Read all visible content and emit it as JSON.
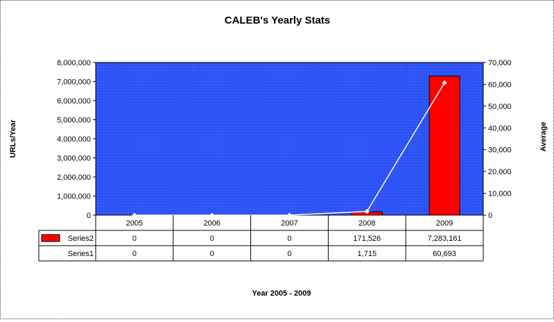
{
  "chart_data": {
    "type": "bar",
    "title": "CALEB's Yearly Stats",
    "xlabel": "Year 2005 - 2009",
    "ylabel": "URLs/Year",
    "y2label": "Average",
    "categories": [
      "2005",
      "2006",
      "2007",
      "2008",
      "2009"
    ],
    "ylim": [
      0,
      8000000
    ],
    "y2lim": [
      0,
      70000
    ],
    "yticks": [
      "0",
      "1,000,000",
      "2,000,000",
      "3,000,000",
      "4,000,000",
      "5,000,000",
      "6,000,000",
      "7,000,000",
      "8,000,000"
    ],
    "y2ticks": [
      "0",
      "10,000",
      "20,000",
      "30,000",
      "40,000",
      "50,000",
      "60,000",
      "70,000"
    ],
    "plot_background": "#2b52f5",
    "grid": false,
    "legend": "data-table",
    "series": [
      {
        "name": "Series2",
        "kind": "bar",
        "axis": "primary",
        "color": "#ff0000",
        "values": [
          0,
          0,
          0,
          171526,
          7283161
        ],
        "labels": [
          "0",
          "0",
          "0",
          "171,526",
          "7,283,161"
        ]
      },
      {
        "name": "Series1",
        "kind": "line",
        "axis": "secondary",
        "color": "#ffffff",
        "values": [
          0,
          0,
          0,
          1715,
          60693
        ],
        "labels": [
          "0",
          "0",
          "0",
          "1,715",
          "60,693"
        ]
      }
    ]
  }
}
